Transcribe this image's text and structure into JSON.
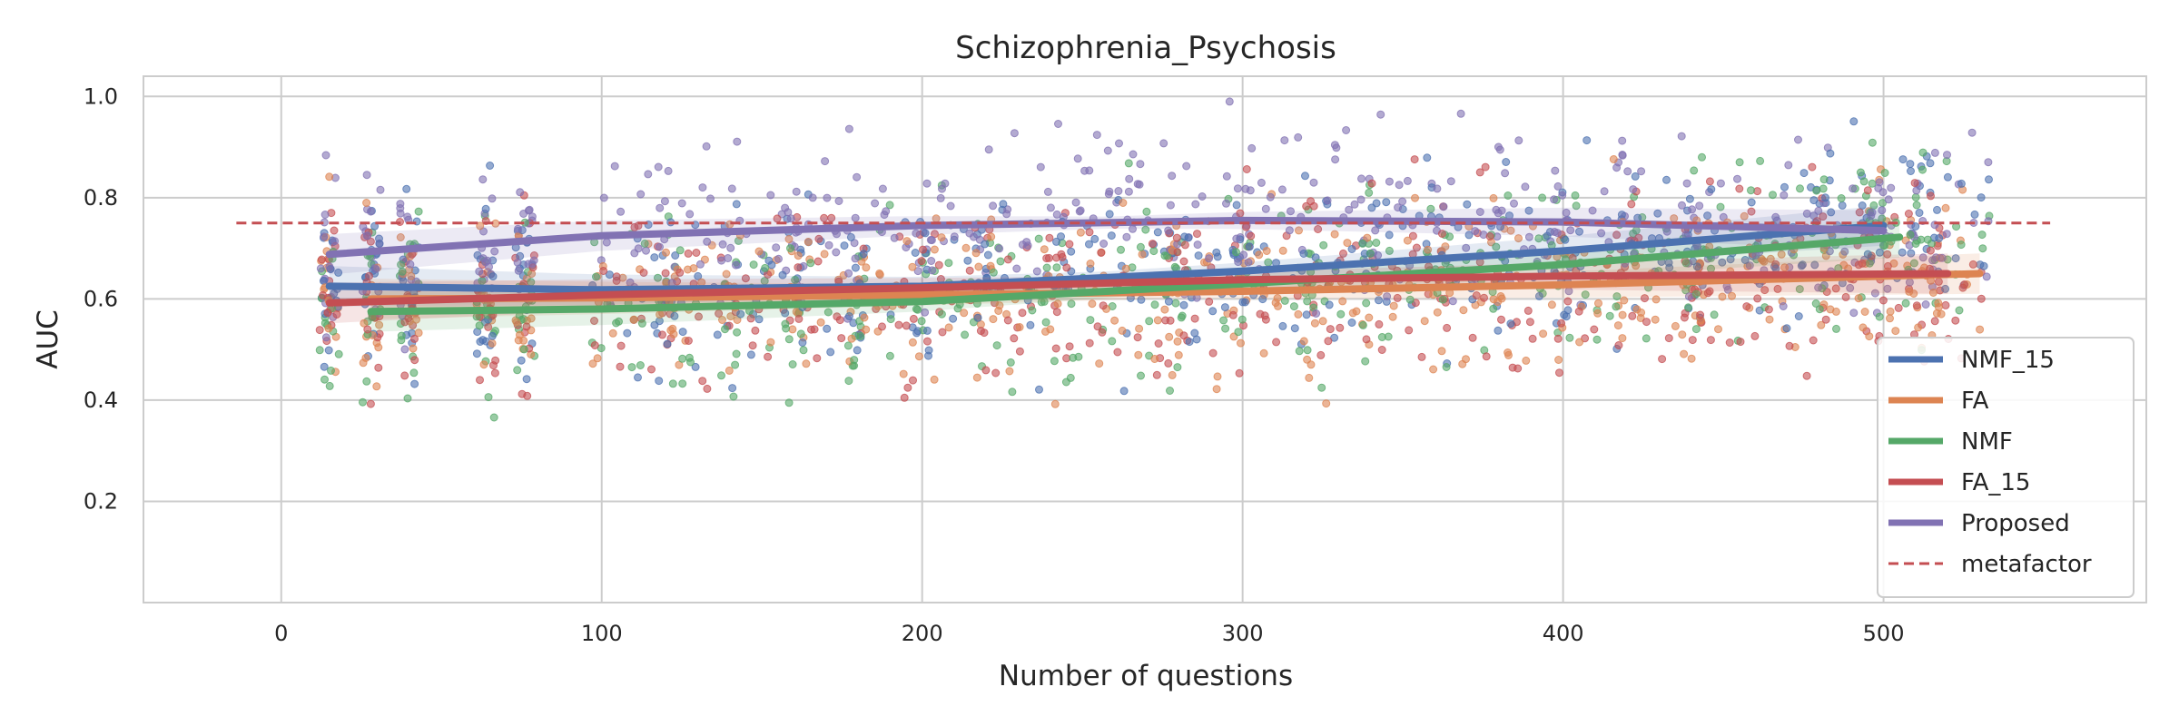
{
  "chart_data": {
    "type": "scatter",
    "title": "Schizophrenia_Psychosis",
    "xlabel": "Number of questions",
    "ylabel": "AUC",
    "xlim": [
      -43,
      582
    ],
    "ylim": [
      0.0,
      1.04
    ],
    "x_ticks": [
      0,
      100,
      200,
      300,
      400,
      500
    ],
    "y_ticks": [
      0.2,
      0.4,
      0.6,
      0.8,
      1.0
    ],
    "grid": true,
    "legend_position": "lower-right",
    "reference_line": {
      "name": "metafactor",
      "y": 0.75,
      "x_range": [
        -14,
        552
      ],
      "color": "#C44E52",
      "style": "dashed"
    },
    "x_positions": [
      15,
      28,
      40,
      64,
      76,
      110,
      130,
      150,
      170,
      190,
      210,
      230,
      250,
      270,
      290,
      310,
      330,
      350,
      370,
      390,
      410,
      430,
      450,
      470,
      490,
      505,
      520
    ],
    "series": [
      {
        "name": "NMF_15",
        "color": "#4C72B0",
        "trend": [
          [
            15,
            0.625
          ],
          [
            100,
            0.618
          ],
          [
            200,
            0.625
          ],
          [
            300,
            0.655
          ],
          [
            400,
            0.695
          ],
          [
            500,
            0.745
          ]
        ]
      },
      {
        "name": "FA",
        "color": "#DD8452",
        "trend": [
          [
            28,
            0.6
          ],
          [
            100,
            0.602
          ],
          [
            200,
            0.608
          ],
          [
            300,
            0.615
          ],
          [
            400,
            0.628
          ],
          [
            530,
            0.65
          ]
        ]
      },
      {
        "name": "NMF",
        "color": "#55A868",
        "trend": [
          [
            28,
            0.575
          ],
          [
            100,
            0.58
          ],
          [
            200,
            0.595
          ],
          [
            300,
            0.63
          ],
          [
            400,
            0.668
          ],
          [
            505,
            0.722
          ]
        ]
      },
      {
        "name": "FA_15",
        "color": "#C44E52",
        "trend": [
          [
            15,
            0.592
          ],
          [
            100,
            0.608
          ],
          [
            200,
            0.622
          ],
          [
            300,
            0.638
          ],
          [
            400,
            0.645
          ],
          [
            520,
            0.65
          ]
        ]
      },
      {
        "name": "Proposed",
        "color": "#8172B3",
        "trend": [
          [
            15,
            0.688
          ],
          [
            100,
            0.725
          ],
          [
            200,
            0.745
          ],
          [
            300,
            0.755
          ],
          [
            400,
            0.752
          ],
          [
            500,
            0.735
          ]
        ]
      }
    ]
  }
}
